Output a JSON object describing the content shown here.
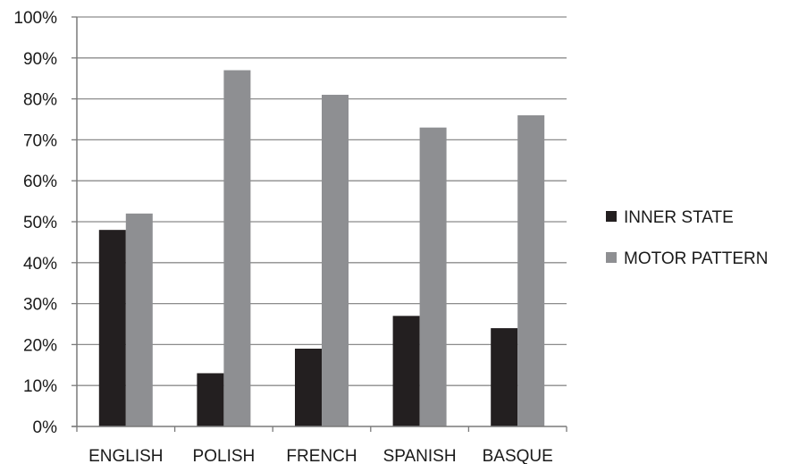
{
  "chart_data": {
    "type": "bar",
    "title": "",
    "xlabel": "",
    "ylabel": "",
    "ylim": [
      0,
      100
    ],
    "y_ticks": [
      "0%",
      "10%",
      "20%",
      "30%",
      "40%",
      "50%",
      "60%",
      "70%",
      "80%",
      "90%",
      "100%"
    ],
    "grid": true,
    "legend_position": "right",
    "categories": [
      "ENGLISH",
      "POLISH",
      "FRENCH",
      "SPANISH",
      "BASQUE"
    ],
    "series": [
      {
        "name": "INNER STATE",
        "color": "#231f20",
        "values": [
          48,
          13,
          19,
          27,
          24
        ]
      },
      {
        "name": "MOTOR PATTERN",
        "color": "#8e8f92",
        "values": [
          52,
          87,
          81,
          73,
          76
        ]
      }
    ]
  }
}
